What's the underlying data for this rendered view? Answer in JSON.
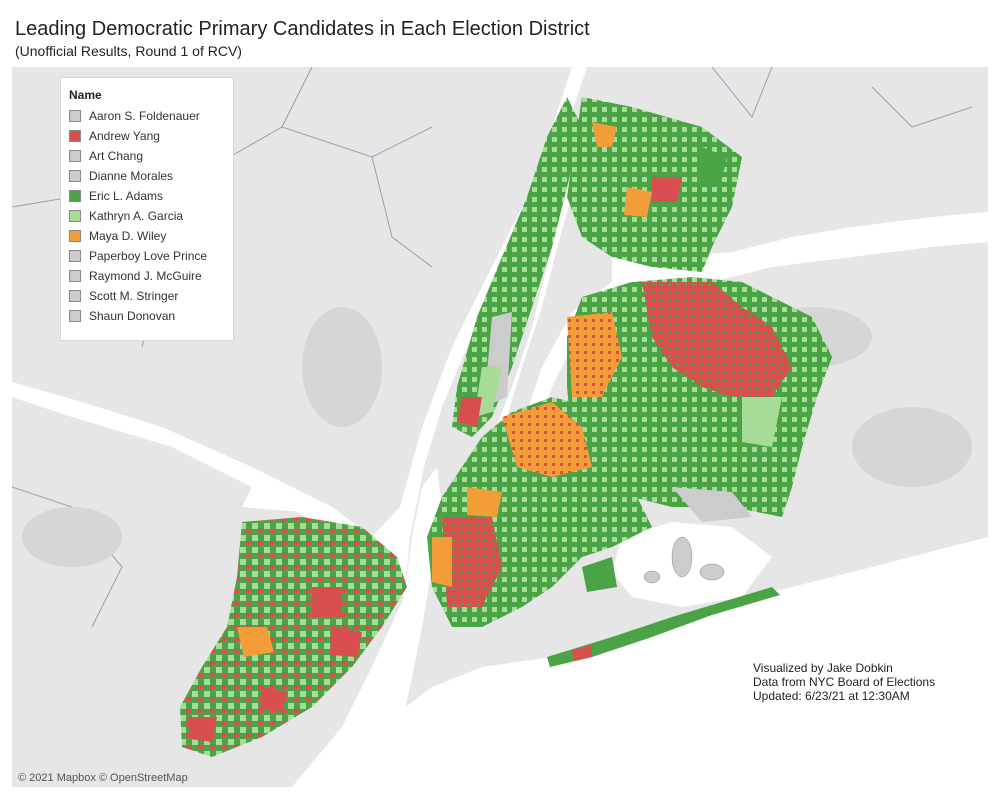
{
  "title": "Leading Democratic Primary Candidates in Each Election District",
  "subtitle": "(Unofficial Results, Round 1 of RCV)",
  "legend": {
    "title": "Name",
    "items": [
      {
        "name": "Aaron S. Foldenauer",
        "color": "#cccccc"
      },
      {
        "name": "Andrew Yang",
        "color": "#d94f4f"
      },
      {
        "name": "Art Chang",
        "color": "#cccccc"
      },
      {
        "name": "Dianne Morales",
        "color": "#cccccc"
      },
      {
        "name": "Eric L. Adams",
        "color": "#4aa345"
      },
      {
        "name": "Kathryn A. Garcia",
        "color": "#a6dc98"
      },
      {
        "name": "Maya D. Wiley",
        "color": "#f29d38"
      },
      {
        "name": "Paperboy Love Prince",
        "color": "#cccccc"
      },
      {
        "name": "Raymond J. McGuire",
        "color": "#cccccc"
      },
      {
        "name": "Scott M. Stringer",
        "color": "#cccccc"
      },
      {
        "name": "Shaun Donovan",
        "color": "#cccccc"
      }
    ]
  },
  "credits": {
    "line1": "Visualized by Jake Dobkin",
    "line2": "Data from NYC Board of Elections",
    "line3": "Updated: 6/23/21 at 12:30AM"
  },
  "copyright": "© 2021 Mapbox © OpenStreetMap",
  "colors": {
    "water": "#ffffff",
    "land": "#e6e6e6",
    "yang": "#d94f4f",
    "adams": "#4aa345",
    "garcia": "#a6dc98",
    "wiley": "#f29d38",
    "other": "#cccccc"
  }
}
